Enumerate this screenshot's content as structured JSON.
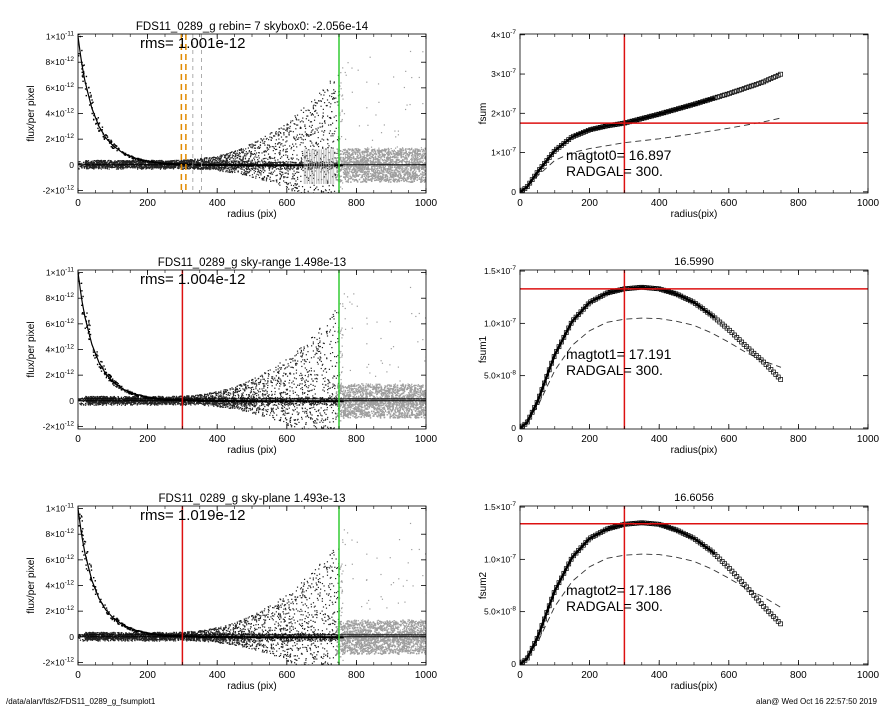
{
  "footer": {
    "path": "/data/alan/fds2/FDS11_0289_g_fsumplot1",
    "user_time": "alan@  Wed Oct 16 22:57:50 2019"
  },
  "colors": {
    "scatter_dark": "#222222",
    "scatter_light": "#9e9e9e",
    "red_line": "#dd1111",
    "green_line": "#33cc33",
    "orange_line": "#e08a00"
  },
  "chart_data": [
    {
      "id": "flux-1",
      "type": "scatter",
      "title": "FDS11_0289_g rebin= 7    skybox0: -2.056e-14",
      "annotation": "rms= 1.001e-12",
      "xlabel": "radius (pix)",
      "ylabel": "flux/per pixel",
      "xlim": [
        0,
        1000
      ],
      "ylim": [
        -2.2e-12,
        1.02e-11
      ],
      "xticks": [
        "0",
        "200",
        "400",
        "600",
        "800",
        "1000"
      ],
      "yticks": [
        {
          "v": 1e-11,
          "m": "1×10",
          "e": "-11"
        },
        {
          "v": 8e-12,
          "m": "8×10",
          "e": "-12"
        },
        {
          "v": 6e-12,
          "m": "6×10",
          "e": "-12"
        },
        {
          "v": 4e-12,
          "m": "4×10",
          "e": "-12"
        },
        {
          "v": 2e-12,
          "m": "2×10",
          "e": "-12"
        },
        {
          "v": 0,
          "m": "0",
          "e": ""
        },
        {
          "v": -2e-12,
          "m": "-2×10",
          "e": "-12"
        }
      ],
      "profile_x": [
        0,
        10,
        20,
        40,
        60,
        80,
        100,
        130,
        160,
        200,
        250,
        300,
        400,
        500,
        600,
        700,
        750
      ],
      "profile_y": [
        1e-11,
        8e-12,
        6.5e-12,
        4.4e-12,
        3e-12,
        2.1e-12,
        1.5e-12,
        9e-13,
        5.5e-13,
        3e-13,
        1.3e-13,
        6e-14,
        2e-14,
        0,
        0,
        0,
        0
      ],
      "vlines": [
        {
          "x": 297,
          "color": "orange",
          "dash": true
        },
        {
          "x": 310,
          "color": "orange",
          "dash": true
        },
        {
          "x": 750,
          "color": "green",
          "dash": false
        }
      ],
      "gray_dashes": [
        330,
        355
      ],
      "hlines": [
        0
      ]
    },
    {
      "id": "fsum-0",
      "type": "scatter",
      "title": "",
      "xlabel": "radius(pix)",
      "ylabel": "fsum",
      "xlim": [
        0,
        1000
      ],
      "ylim": [
        -3e-09,
        4.02e-07
      ],
      "xticks": [
        "0",
        "200",
        "400",
        "600",
        "800",
        "1000"
      ],
      "yticks": [
        {
          "v": 4e-07,
          "m": "4×10",
          "e": "-7"
        },
        {
          "v": 3e-07,
          "m": "3×10",
          "e": "-7"
        },
        {
          "v": 2e-07,
          "m": "2×10",
          "e": "-7"
        },
        {
          "v": 1e-07,
          "m": "1×10",
          "e": "-7"
        },
        {
          "v": 0,
          "m": "0",
          "e": ""
        }
      ],
      "curve_x": [
        0,
        20,
        50,
        100,
        150,
        200,
        250,
        300,
        400,
        500,
        600,
        700,
        750
      ],
      "curve_y": [
        0,
        1.2e-08,
        5e-08,
        1.05e-07,
        1.4e-07,
        1.58e-07,
        1.68e-07,
        1.75e-07,
        1.98e-07,
        2.23e-07,
        2.5e-07,
        2.8e-07,
        3e-07
      ],
      "dashed_x": [
        0,
        50,
        100,
        150,
        200,
        300,
        400,
        500,
        600,
        700,
        750
      ],
      "dashed_y": [
        0,
        4e-08,
        8e-08,
        1e-07,
        1.1e-07,
        1.25e-07,
        1.35e-07,
        1.48e-07,
        1.62e-07,
        1.78e-07,
        1.88e-07
      ],
      "vline_x": 300,
      "hline_y": 1.75e-07,
      "label_mag": "magtot0=  16.897",
      "label_rad": "RADGAL=    300."
    },
    {
      "id": "flux-2",
      "type": "scatter",
      "title": "FDS11_0289_g sky-range  1.498e-13",
      "annotation": "rms= 1.004e-12",
      "xlabel": "radius (pix)",
      "ylabel": "flux/per pixel",
      "xlim": [
        0,
        1000
      ],
      "ylim": [
        -2.2e-12,
        1.02e-11
      ],
      "xticks": [
        "0",
        "200",
        "400",
        "600",
        "800",
        "1000"
      ],
      "yticks": [
        {
          "v": 1e-11,
          "m": "1×10",
          "e": "-11"
        },
        {
          "v": 8e-12,
          "m": "8×10",
          "e": "-12"
        },
        {
          "v": 6e-12,
          "m": "6×10",
          "e": "-12"
        },
        {
          "v": 4e-12,
          "m": "4×10",
          "e": "-12"
        },
        {
          "v": 2e-12,
          "m": "2×10",
          "e": "-12"
        },
        {
          "v": 0,
          "m": "0",
          "e": ""
        },
        {
          "v": -2e-12,
          "m": "-2×10",
          "e": "-12"
        }
      ],
      "profile_x": [
        0,
        10,
        20,
        40,
        60,
        80,
        100,
        130,
        160,
        200,
        250,
        300,
        400,
        500,
        600,
        700,
        750
      ],
      "profile_y": [
        1e-11,
        8e-12,
        6.5e-12,
        4.4e-12,
        3e-12,
        2.1e-12,
        1.5e-12,
        9e-13,
        5.5e-13,
        3e-13,
        1.3e-13,
        6e-14,
        2e-14,
        0,
        0,
        0,
        0
      ],
      "vlines": [
        {
          "x": 300,
          "color": "red",
          "dash": false
        },
        {
          "x": 750,
          "color": "green",
          "dash": false
        }
      ],
      "gray_dashes": [],
      "hlines": [
        1.5e-13,
        0
      ]
    },
    {
      "id": "fsum-1",
      "type": "scatter",
      "title": "16.5990",
      "xlabel": "radius(pix)",
      "ylabel": "fsum1",
      "xlim": [
        0,
        1000
      ],
      "ylim": [
        -1e-09,
        1.51e-07
      ],
      "xticks": [
        "0",
        "200",
        "400",
        "600",
        "800",
        "1000"
      ],
      "yticks": [
        {
          "v": 1.5e-07,
          "m": "1.5×10",
          "e": "-7"
        },
        {
          "v": 1e-07,
          "m": "1.0×10",
          "e": "-7"
        },
        {
          "v": 5e-08,
          "m": "5.0×10",
          "e": "-8"
        },
        {
          "v": 0,
          "m": "0",
          "e": ""
        }
      ],
      "curve_x": [
        0,
        20,
        50,
        100,
        150,
        200,
        250,
        300,
        350,
        400,
        450,
        500,
        550,
        600,
        650,
        700,
        750
      ],
      "curve_y": [
        0,
        5e-09,
        2.5e-08,
        7e-08,
        1.02e-07,
        1.2e-07,
        1.29e-07,
        1.33e-07,
        1.345e-07,
        1.33e-07,
        1.28e-07,
        1.2e-07,
        1.08e-07,
        9.4e-08,
        7.8e-08,
        6.3e-08,
        4.6e-08
      ],
      "dashed_x": [
        0,
        50,
        100,
        150,
        200,
        250,
        300,
        350,
        400,
        450,
        500,
        550,
        600,
        650,
        700,
        750
      ],
      "dashed_y": [
        0,
        2e-08,
        5.5e-08,
        7.9e-08,
        9.3e-08,
        1.01e-07,
        1.04e-07,
        1.05e-07,
        1.045e-07,
        1.02e-07,
        9.8e-08,
        9.1e-08,
        8.2e-08,
        7.2e-08,
        6.4e-08,
        5.8e-08
      ],
      "vline_x": 300,
      "hline_y": 1.33e-07,
      "label_mag": "magtot1=  17.191",
      "label_rad": "RADGAL=    300."
    },
    {
      "id": "flux-3",
      "type": "scatter",
      "title": "FDS11_0289_g sky-plane  1.493e-13",
      "annotation": "rms= 1.019e-12",
      "xlabel": "radius (pix)",
      "ylabel": "flux/per pixel",
      "xlim": [
        0,
        1000
      ],
      "ylim": [
        -2.2e-12,
        1.02e-11
      ],
      "xticks": [
        "0",
        "200",
        "400",
        "600",
        "800",
        "1000"
      ],
      "yticks": [
        {
          "v": 1e-11,
          "m": "1×10",
          "e": "-11"
        },
        {
          "v": 8e-12,
          "m": "8×10",
          "e": "-12"
        },
        {
          "v": 6e-12,
          "m": "6×10",
          "e": "-12"
        },
        {
          "v": 4e-12,
          "m": "4×10",
          "e": "-12"
        },
        {
          "v": 2e-12,
          "m": "2×10",
          "e": "-12"
        },
        {
          "v": 0,
          "m": "0",
          "e": ""
        },
        {
          "v": -2e-12,
          "m": "-2×10",
          "e": "-12"
        }
      ],
      "profile_x": [
        0,
        10,
        20,
        40,
        60,
        80,
        100,
        130,
        160,
        200,
        250,
        300,
        400,
        500,
        600,
        700,
        750
      ],
      "profile_y": [
        1e-11,
        8e-12,
        6.5e-12,
        4.4e-12,
        3e-12,
        2.1e-12,
        1.5e-12,
        9e-13,
        5.5e-13,
        3e-13,
        1.3e-13,
        6e-14,
        2e-14,
        0,
        0,
        0,
        0
      ],
      "vlines": [
        {
          "x": 300,
          "color": "red",
          "dash": false
        },
        {
          "x": 750,
          "color": "green",
          "dash": false
        }
      ],
      "gray_dashes": [],
      "hlines": [
        1.5e-13,
        0
      ]
    },
    {
      "id": "fsum-2",
      "type": "scatter",
      "title": "16.6056",
      "xlabel": "radius(pix)",
      "ylabel": "fsum2",
      "xlim": [
        0,
        1000
      ],
      "ylim": [
        -1e-09,
        1.51e-07
      ],
      "xticks": [
        "0",
        "200",
        "400",
        "600",
        "800",
        "1000"
      ],
      "yticks": [
        {
          "v": 1.5e-07,
          "m": "1.5×10",
          "e": "-7"
        },
        {
          "v": 1e-07,
          "m": "1.0×10",
          "e": "-7"
        },
        {
          "v": 5e-08,
          "m": "5.0×10",
          "e": "-8"
        },
        {
          "v": 0,
          "m": "0",
          "e": ""
        }
      ],
      "curve_x": [
        0,
        20,
        50,
        100,
        150,
        200,
        250,
        300,
        350,
        400,
        450,
        500,
        550,
        600,
        650,
        700,
        750
      ],
      "curve_y": [
        0,
        5e-09,
        2.5e-08,
        7e-08,
        1.02e-07,
        1.2e-07,
        1.29e-07,
        1.335e-07,
        1.35e-07,
        1.335e-07,
        1.28e-07,
        1.2e-07,
        1.08e-07,
        9.2e-08,
        7.4e-08,
        5.5e-08,
        3.8e-08
      ],
      "dashed_x": [
        0,
        50,
        100,
        150,
        200,
        250,
        300,
        350,
        400,
        450,
        500,
        550,
        600,
        650,
        700,
        750
      ],
      "dashed_y": [
        0,
        2e-08,
        5.5e-08,
        7.9e-08,
        9.3e-08,
        1.01e-07,
        1.04e-07,
        1.05e-07,
        1.045e-07,
        1.02e-07,
        9.8e-08,
        9.1e-08,
        8.2e-08,
        7.2e-08,
        6.4e-08,
        5.4e-08
      ],
      "vline_x": 300,
      "hline_y": 1.34e-07,
      "label_mag": "magtot2=  17.186",
      "label_rad": "RADGAL=    300."
    }
  ]
}
